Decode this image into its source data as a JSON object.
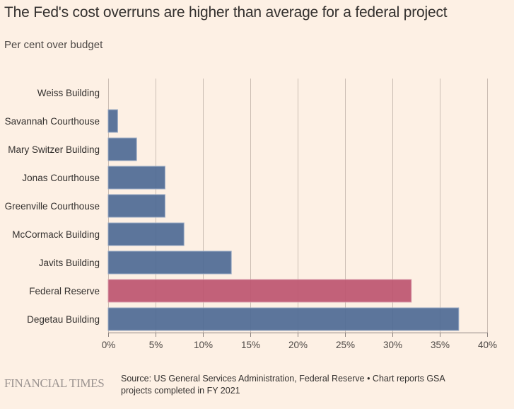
{
  "header": {
    "title": "The Fed's cost overruns are higher than average for a federal project",
    "subtitle": "Per cent over budget"
  },
  "footer": {
    "brand": "FINANCIAL TIMES",
    "source": "Source: US General Services Administration, Federal Reserve • Chart reports GSA projects completed in FY 2021"
  },
  "colors": {
    "background": "#fdf0e4",
    "bar_default": "#4e6a95",
    "bar_highlight": "#bd5570",
    "gridline": "#cbbdb3",
    "axis": "#8c8380",
    "text": "#33302e"
  },
  "chart_data": {
    "type": "bar",
    "orientation": "horizontal",
    "title": "The Fed's cost overruns are higher than average for a federal project",
    "subtitle": "Per cent over budget",
    "xlabel": "",
    "ylabel": "",
    "xlim": [
      0,
      40
    ],
    "x_ticks": [
      0,
      5,
      10,
      15,
      20,
      25,
      30,
      35,
      40
    ],
    "x_tick_labels": [
      "0%",
      "5%",
      "10%",
      "15%",
      "20%",
      "25%",
      "30%",
      "35%",
      "40%"
    ],
    "grid": "vertical",
    "legend": "none",
    "categories": [
      "Weiss Building",
      "Savannah Courthouse",
      "Mary Switzer Building",
      "Jonas Courthouse",
      "Greenville Courthouse",
      "McCormack Building",
      "Javits Building",
      "Federal Reserve",
      "Degetau Building"
    ],
    "values": [
      0,
      1,
      3,
      6,
      6,
      8,
      13,
      32,
      37
    ],
    "highlight": [
      "Federal Reserve"
    ],
    "unit": "%"
  }
}
